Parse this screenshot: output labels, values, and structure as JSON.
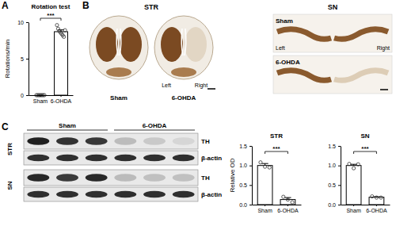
{
  "chart_data": [
    {
      "type": "bar",
      "title": "Rotation test",
      "y_label": "Rotations/min",
      "categories": [
        "Sham",
        "6-OHDA"
      ],
      "values": [
        0,
        8.7
      ],
      "errors": [
        0,
        0.25
      ],
      "points": [
        [
          0,
          0,
          0,
          0,
          0,
          0,
          0
        ],
        [
          9.6,
          9.1,
          8.8,
          8.6,
          8.4,
          8.2,
          8.0,
          8.9
        ]
      ],
      "color": "#ffffff",
      "ylim": [
        0,
        10
      ],
      "yticks": [
        0,
        5,
        10
      ],
      "grid": false,
      "annotations": [
        "***"
      ]
    },
    {
      "type": "bar",
      "title": "STR",
      "y_label": "Relative OD",
      "categories": [
        "Sham",
        "6-OHDA"
      ],
      "values": [
        1.0,
        0.13
      ],
      "errors": [
        0.05,
        0.05
      ],
      "points": [
        [
          1.08,
          0.97,
          0.95
        ],
        [
          0.2,
          0.13,
          0.06
        ]
      ],
      "color": "#ffffff",
      "ylim": [
        0,
        1.5
      ],
      "yticks": [
        {
          "value": 0,
          "label": "0.0"
        },
        {
          "value": 0.5,
          "label": "0.5"
        },
        {
          "value": 1,
          "label": "1.0"
        },
        {
          "value": 1.5,
          "label": "1.5"
        }
      ],
      "grid": false,
      "annotations": [
        "***"
      ]
    },
    {
      "type": "bar",
      "title": "SN",
      "categories": [
        "Sham",
        "6-OHDA"
      ],
      "values": [
        1.0,
        0.19
      ],
      "errors": [
        0.03,
        0.01
      ],
      "points": [
        [
          1.04,
          0.93,
          1.03
        ],
        [
          0.21,
          0.18,
          0.18
        ]
      ],
      "color": "#ffffff",
      "ylim": [
        0,
        1.5
      ],
      "yticks": [
        {
          "value": 0,
          "label": "0.0"
        },
        {
          "value": 0.5,
          "label": "0.5"
        },
        {
          "value": 1,
          "label": "1.0"
        },
        {
          "value": 1.5,
          "label": "1.5"
        }
      ],
      "grid": false,
      "annotations": [
        "***"
      ]
    }
  ],
  "figure": {
    "panel_labels": [
      "A",
      "B",
      "C"
    ],
    "sections": {
      "regions": [
        "STR",
        "SN"
      ],
      "groups": [
        "Sham",
        "6-OHDA"
      ],
      "sides": [
        "Left",
        "Right"
      ]
    },
    "blot": {
      "groups": [
        "Sham",
        "6-OHDA"
      ],
      "regions": [
        "STR",
        "SN"
      ],
      "proteins": [
        "TH",
        "β-actin"
      ]
    }
  }
}
